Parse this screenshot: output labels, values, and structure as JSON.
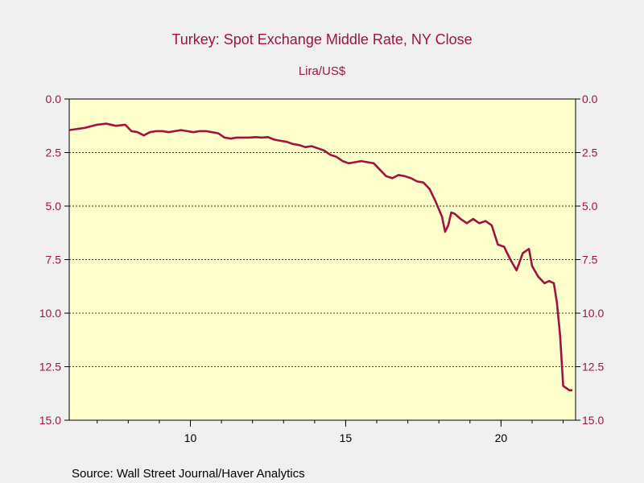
{
  "chart_data": {
    "type": "line",
    "title": "Turkey: Spot Exchange Middle Rate, NY Close",
    "subtitle": "Lira/US$",
    "source": "Source:  Wall Street Journal/Haver Analytics",
    "y_inverted": true,
    "ylim": [
      0,
      15
    ],
    "yticks": [
      "0.0",
      "2.5",
      "5.0",
      "7.5",
      "10.0",
      "12.5",
      "15.0"
    ],
    "xlim": [
      2006.1,
      2022.4
    ],
    "xticks": [
      "10",
      "15",
      "20"
    ],
    "xtick_years": [
      2010,
      2015,
      2020
    ],
    "grid": "horizontal-dashed",
    "colors": {
      "line": "#a0143c",
      "plot_bg": "#ffffcc",
      "page_bg": "#f0f0f0",
      "text": "#a0143c"
    },
    "series": [
      {
        "x": [
          2006.1,
          2006.6,
          2007.0,
          2007.3,
          2007.6,
          2007.9,
          2008.1,
          2008.3,
          2008.5,
          2008.7,
          2008.9,
          2009.1,
          2009.3,
          2009.5,
          2009.7,
          2009.9,
          2010.1,
          2010.3,
          2010.5,
          2010.7,
          2010.9,
          2011.1,
          2011.3,
          2011.5,
          2011.7,
          2011.9,
          2012.1,
          2012.3,
          2012.5,
          2012.7,
          2012.9,
          2013.1,
          2013.3,
          2013.5,
          2013.7,
          2013.9,
          2014.1,
          2014.3,
          2014.5,
          2014.7,
          2014.9,
          2015.1,
          2015.3,
          2015.5,
          2015.7,
          2015.9,
          2016.1,
          2016.3,
          2016.5,
          2016.7,
          2016.9,
          2017.1,
          2017.3,
          2017.5,
          2017.7,
          2017.9,
          2018.1,
          2018.2,
          2018.3,
          2018.4,
          2018.5,
          2018.7,
          2018.9,
          2019.1,
          2019.3,
          2019.5,
          2019.7,
          2019.9,
          2020.1,
          2020.3,
          2020.5,
          2020.7,
          2020.9,
          2021.0,
          2021.2,
          2021.4,
          2021.55,
          2021.7,
          2021.8,
          2021.9,
          2022.0,
          2022.1,
          2022.2,
          2022.3
        ],
        "values": [
          1.45,
          1.35,
          1.2,
          1.15,
          1.25,
          1.2,
          1.5,
          1.55,
          1.7,
          1.55,
          1.5,
          1.5,
          1.55,
          1.5,
          1.45,
          1.5,
          1.55,
          1.5,
          1.5,
          1.55,
          1.6,
          1.8,
          1.85,
          1.8,
          1.8,
          1.8,
          1.78,
          1.8,
          1.78,
          1.9,
          1.95,
          2.0,
          2.1,
          2.15,
          2.25,
          2.2,
          2.3,
          2.4,
          2.6,
          2.7,
          2.9,
          3.0,
          2.95,
          2.9,
          2.95,
          3.0,
          3.3,
          3.6,
          3.7,
          3.55,
          3.6,
          3.7,
          3.85,
          3.9,
          4.2,
          4.8,
          5.5,
          6.2,
          5.9,
          5.3,
          5.35,
          5.6,
          5.8,
          5.6,
          5.8,
          5.7,
          5.9,
          6.8,
          6.9,
          7.5,
          8.0,
          7.2,
          7.0,
          7.8,
          8.3,
          8.6,
          8.5,
          8.6,
          9.5,
          11.0,
          13.4,
          13.5,
          13.6,
          13.6
        ]
      }
    ]
  }
}
